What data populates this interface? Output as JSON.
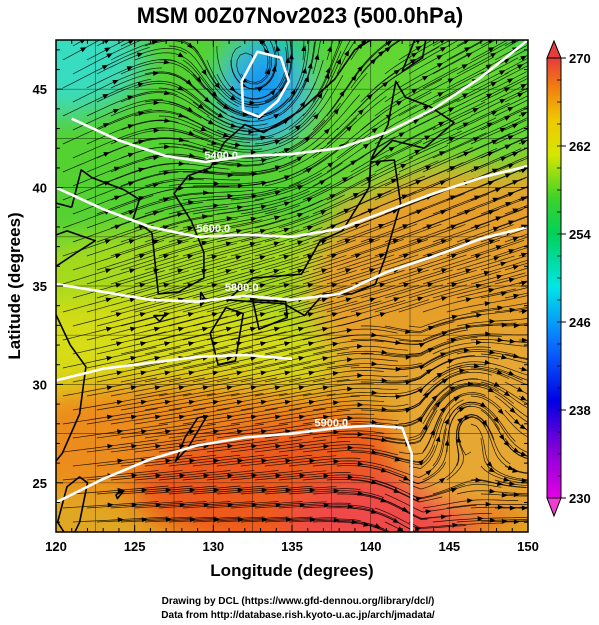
{
  "chart_data": {
    "type": "heatmap",
    "title": "MSM 00Z07Nov2023 (500.0hPa)",
    "xlabel": "Longitude (degrees)",
    "ylabel": "Latitude  (degrees)",
    "xlim": [
      120,
      150
    ],
    "ylim": [
      22.5,
      47.5
    ],
    "xticks": [
      "120",
      "125",
      "130",
      "135",
      "140",
      "145",
      "150"
    ],
    "yticks": [
      "25",
      "30",
      "35",
      "40",
      "45"
    ],
    "colorbar": {
      "range": [
        230,
        270
      ],
      "ticks": [
        "270",
        "262",
        "254",
        "246",
        "238",
        "230"
      ]
    },
    "contours": [
      {
        "label": "5400.0",
        "points": [
          [
            121,
            43.5
          ],
          [
            124,
            42.4
          ],
          [
            127,
            41.6
          ],
          [
            129.5,
            41.3
          ],
          [
            132,
            41.6
          ],
          [
            135,
            41.7
          ],
          [
            138,
            42.0
          ],
          [
            141,
            42.8
          ],
          [
            144,
            44.0
          ],
          [
            147,
            45.6
          ],
          [
            150,
            47.5
          ]
        ]
      },
      {
        "label": "5600.0",
        "points": [
          [
            120,
            40.0
          ],
          [
            123,
            38.9
          ],
          [
            126,
            38.0
          ],
          [
            129,
            37.5
          ],
          [
            132,
            37.6
          ],
          [
            135,
            37.5
          ],
          [
            138,
            37.9
          ],
          [
            141,
            38.8
          ],
          [
            144,
            39.7
          ],
          [
            147,
            40.5
          ],
          [
            150,
            41.1
          ]
        ]
      },
      {
        "label": "5800.0",
        "points": [
          [
            120,
            35.1
          ],
          [
            123,
            34.7
          ],
          [
            126,
            34.3
          ],
          [
            129,
            34.2
          ],
          [
            132,
            34.5
          ],
          [
            135,
            34.3
          ],
          [
            138,
            34.6
          ],
          [
            141,
            35.7
          ],
          [
            144,
            36.5
          ],
          [
            147,
            37.4
          ],
          [
            150,
            38.0
          ]
        ]
      },
      {
        "label": "",
        "points": [
          [
            120,
            30.2
          ],
          [
            123,
            30.8
          ],
          [
            126,
            31.1
          ],
          [
            129,
            31.4
          ],
          [
            132,
            31.5
          ],
          [
            135,
            31.3
          ]
        ]
      },
      {
        "label": "5900.0",
        "points": [
          [
            120,
            24.0
          ],
          [
            123,
            25.2
          ],
          [
            126,
            26.2
          ],
          [
            129,
            26.9
          ],
          [
            132,
            27.3
          ],
          [
            135,
            27.5
          ],
          [
            138,
            27.8
          ],
          [
            140,
            27.9
          ],
          [
            142,
            27.8
          ],
          [
            142.6,
            26.5
          ],
          [
            142.6,
            22.5
          ]
        ]
      },
      {
        "label": "",
        "points": [
          [
            131.9,
            43.9
          ],
          [
            131.8,
            45.4
          ],
          [
            132.8,
            46.9
          ],
          [
            134.3,
            46.6
          ],
          [
            134.8,
            45.4
          ],
          [
            134.1,
            44.4
          ],
          [
            132.9,
            43.6
          ],
          [
            131.9,
            43.9
          ]
        ]
      }
    ],
    "contour_label_positions": [
      [
        130.5,
        41.3
      ],
      [
        130.0,
        37.6
      ],
      [
        131.8,
        34.6
      ],
      [
        137.5,
        27.7
      ]
    ]
  },
  "credits": {
    "line1": "Drawing by DCL (https://www.gfd-dennou.org/library/dcl/)",
    "line2": "Data from http://database.rish.kyoto-u.ac.jp/arch/jmadata/"
  }
}
